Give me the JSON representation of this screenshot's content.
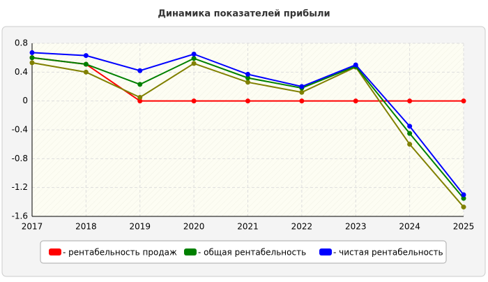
{
  "chart_data": {
    "type": "line",
    "title": "Динамика показателей прибыли",
    "x": [
      2017,
      2018,
      2019,
      2020,
      2021,
      2022,
      2023,
      2024,
      2025
    ],
    "xlim": [
      2017,
      2025
    ],
    "xticks": [
      2017,
      2018,
      2019,
      2020,
      2021,
      2022,
      2023,
      2024,
      2025
    ],
    "ylim": [
      -1.6,
      0.8
    ],
    "yticks": [
      0.8,
      0.4,
      0,
      -0.4,
      -0.8,
      -1.2,
      -1.6
    ],
    "grid": true,
    "series": [
      {
        "name": "- рентабельность продаж",
        "color": "#ff0000",
        "values": [
          0.6,
          0.51,
          0,
          0,
          0,
          0,
          0,
          0,
          0
        ]
      },
      {
        "color": "#808000",
        "values": [
          0.53,
          0.4,
          0.05,
          0.52,
          0.26,
          0.12,
          0.47,
          -0.6,
          -1.47
        ]
      },
      {
        "name": "- общая рентабельность",
        "color": "#008000",
        "values": [
          0.6,
          0.51,
          0.23,
          0.59,
          0.32,
          0.18,
          0.48,
          -0.45,
          -1.35
        ]
      },
      {
        "name": "- чистая рентабельность",
        "color": "#0000ff",
        "values": [
          0.67,
          0.63,
          0.42,
          0.65,
          0.37,
          0.2,
          0.5,
          -0.35,
          -1.3
        ]
      }
    ]
  }
}
